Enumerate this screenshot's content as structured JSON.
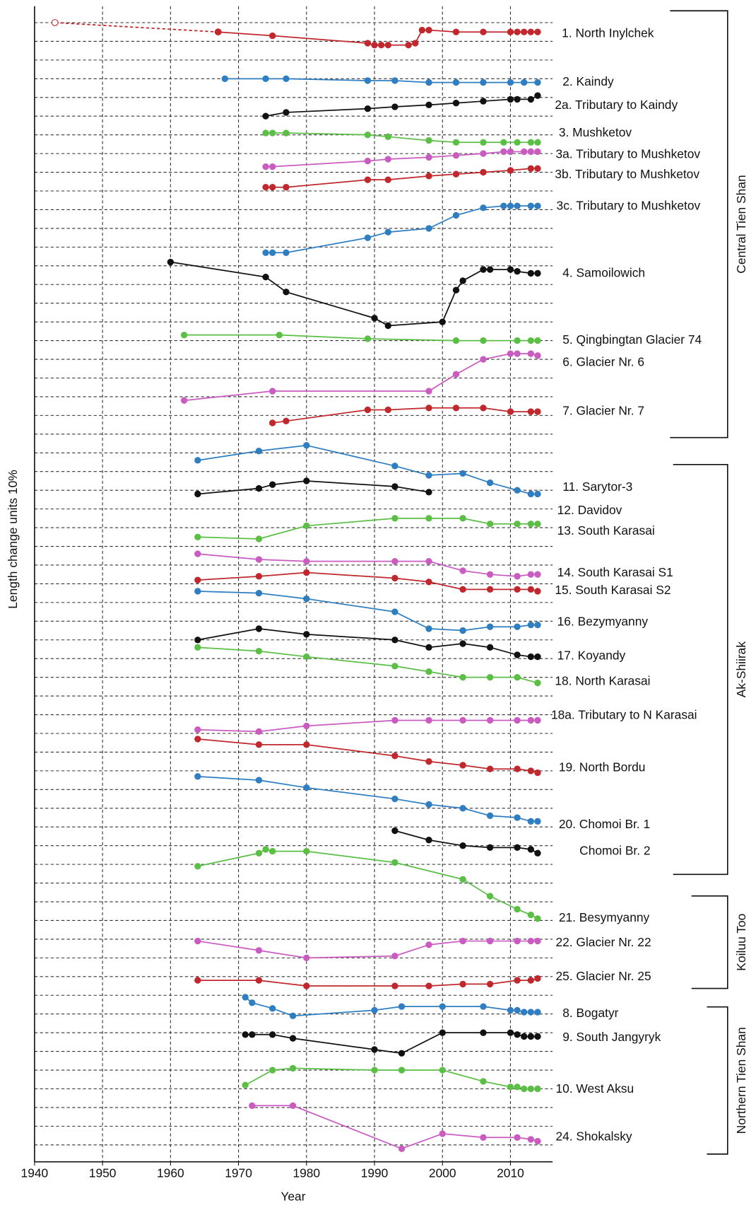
{
  "chart_data": {
    "type": "line",
    "x_label": "Year",
    "y_label": "Length change units 10%",
    "xlim": [
      1940,
      2016.2
    ],
    "xticks": [
      1940,
      1950,
      1960,
      1970,
      1980,
      1990,
      2000,
      2010
    ],
    "ylim": [
      0,
      61.78
    ],
    "ygrid": [
      0.9,
      1.9,
      2.9,
      3.9,
      4.9,
      5.9,
      6.9,
      7.9,
      8.9,
      9.9,
      10.9,
      11.9,
      12.9,
      13.9,
      14.9,
      15.9,
      16.9,
      17.9,
      18.9,
      19.9,
      20.9,
      21.9,
      22.9,
      23.9,
      24.9,
      25.9,
      26.9,
      27.9,
      28.9,
      29.9,
      30.9,
      31.9,
      32.9,
      33.9,
      34.9,
      35.9,
      36.9,
      37.9,
      38.9,
      39.9,
      40.9,
      41.9,
      42.9,
      43.9,
      44.9,
      45.9,
      46.9,
      47.9,
      48.9,
      49.9,
      50.9,
      51.9,
      52.9,
      53.9,
      54.9,
      55.9,
      56.9,
      57.9,
      58.9,
      59.9,
      60.9
    ],
    "grid": true,
    "groups": [
      "Central Tien Shan",
      "Ak-Shiirak",
      "Koiluu Too",
      "Northern Tien Shan"
    ],
    "unlinked_labels": [
      "12. Davidov"
    ],
    "series": [
      {
        "color": "#c0282d",
        "style": "dashed",
        "x": [
          1943,
          1967
        ],
        "values": [
          60.9,
          60.4
        ]
      },
      {
        "name": "1. North Inylchek",
        "color": "#c0282d",
        "x": [
          1967,
          1975,
          1989,
          1990,
          1991,
          1992,
          1995,
          1996,
          1997,
          1998,
          2002,
          2006,
          2010,
          2011,
          2012,
          2013,
          2014
        ],
        "values": [
          60.4,
          60.2,
          59.8,
          59.7,
          59.7,
          59.7,
          59.7,
          59.8,
          60.5,
          60.5,
          60.4,
          60.4,
          60.4,
          60.4,
          60.4,
          60.4,
          60.4
        ]
      },
      {
        "name": "2. Kaindy",
        "color": "#2e7ec1",
        "x": [
          1968,
          1974,
          1977,
          1989,
          1993,
          1998,
          2002,
          2006,
          2010,
          2012,
          2014
        ],
        "values": [
          57.9,
          57.9,
          57.9,
          57.8,
          57.8,
          57.7,
          57.7,
          57.7,
          57.7,
          57.7,
          57.7
        ]
      },
      {
        "name": "2a. Tributary to Kaindy",
        "color": "#111111",
        "x": [
          1974,
          1977,
          1989,
          1993,
          1998,
          2002,
          2006,
          2010,
          2011,
          2013,
          2014
        ],
        "values": [
          55.9,
          56.1,
          56.3,
          56.4,
          56.5,
          56.6,
          56.7,
          56.8,
          56.8,
          56.8,
          57.0
        ]
      },
      {
        "name": "3. Mushketov",
        "color": "#5bbf46",
        "x": [
          1974,
          1975,
          1977,
          1989,
          1992,
          1998,
          2002,
          2006,
          2009,
          2011,
          2013,
          2014
        ],
        "values": [
          55.0,
          55.0,
          55.0,
          54.9,
          54.8,
          54.6,
          54.5,
          54.5,
          54.5,
          54.5,
          54.5,
          54.5
        ]
      },
      {
        "name": "3a. Tributary to Mushketov",
        "color": "#c95bc1",
        "x": [
          1974,
          1975,
          1989,
          1992,
          1998,
          2002,
          2006,
          2009,
          2010,
          2012,
          2013,
          2014
        ],
        "values": [
          53.2,
          53.2,
          53.5,
          53.6,
          53.7,
          53.8,
          53.9,
          54.0,
          54.0,
          54.0,
          54.0,
          54.0
        ]
      },
      {
        "name": "3b. Tributary to Mushketov",
        "color": "#c0282d",
        "x": [
          1974,
          1975,
          1977,
          1989,
          1992,
          1998,
          2002,
          2006,
          2010,
          2013,
          2014
        ],
        "values": [
          52.1,
          52.1,
          52.1,
          52.5,
          52.5,
          52.7,
          52.8,
          52.9,
          53.0,
          53.1,
          53.1
        ]
      },
      {
        "name": "3c. Tributary to Mushketov",
        "color": "#2e7ec1",
        "x": [
          1974,
          1975,
          1977,
          1989,
          1992,
          1998,
          2002,
          2006,
          2009,
          2010,
          2011,
          2013,
          2014
        ],
        "values": [
          48.6,
          48.6,
          48.6,
          49.4,
          49.7,
          49.9,
          50.6,
          51.0,
          51.1,
          51.1,
          51.1,
          51.1,
          51.1
        ]
      },
      {
        "name": "4. Samoilowich",
        "color": "#111111",
        "x": [
          1960,
          1974,
          1977,
          1990,
          1992,
          2000,
          2002,
          2003,
          2006,
          2007,
          2010,
          2011,
          2013,
          2014
        ],
        "values": [
          48.1,
          47.3,
          46.5,
          45.1,
          44.7,
          44.9,
          46.6,
          47.1,
          47.7,
          47.7,
          47.7,
          47.6,
          47.5,
          47.5
        ]
      },
      {
        "name": "5. Qingbingtan Glacier 74",
        "color": "#5bbf46",
        "x": [
          1962,
          1976,
          1989,
          2002,
          2006,
          2011,
          2013,
          2014
        ],
        "values": [
          44.2,
          44.2,
          44.0,
          43.9,
          43.9,
          43.9,
          43.9,
          43.9
        ]
      },
      {
        "name": "6. Glacier Nr. 6",
        "color": "#c95bc1",
        "x": [
          1962,
          1975,
          1998,
          2002,
          2006,
          2010,
          2011,
          2013,
          2014
        ],
        "values": [
          40.7,
          41.2,
          41.2,
          42.1,
          42.9,
          43.2,
          43.2,
          43.2,
          43.1
        ]
      },
      {
        "name": "7. Glacier Nr. 7",
        "color": "#c0282d",
        "x": [
          1975,
          1977,
          1989,
          1992,
          1998,
          2002,
          2006,
          2010,
          2013,
          2014
        ],
        "values": [
          39.5,
          39.6,
          40.2,
          40.2,
          40.3,
          40.3,
          40.3,
          40.1,
          40.1,
          40.1
        ]
      },
      {
        "color": "#2e7ec1",
        "x": [
          1964,
          1973,
          1980,
          1993,
          1998,
          2003,
          2007,
          2011,
          2013,
          2014
        ],
        "values": [
          37.5,
          38.0,
          38.3,
          37.2,
          36.7,
          36.8,
          36.3,
          35.9,
          35.7,
          35.7
        ]
      },
      {
        "name": "11. Sarytor-3",
        "color": "#111111",
        "x": [
          1964,
          1973,
          1975,
          1980,
          1993,
          1998
        ],
        "values": [
          35.7,
          36.0,
          36.2,
          36.4,
          36.1,
          35.8
        ]
      },
      {
        "name": "13. South Karasai",
        "color": "#5bbf46",
        "x": [
          1964,
          1973,
          1980,
          1993,
          1998,
          2003,
          2007,
          2011,
          2013,
          2014
        ],
        "values": [
          33.4,
          33.3,
          34.0,
          34.4,
          34.4,
          34.4,
          34.1,
          34.1,
          34.1,
          34.1
        ]
      },
      {
        "name": "14. South Karasai S1",
        "color": "#c95bc1",
        "x": [
          1964,
          1973,
          1980,
          1993,
          1998,
          2003,
          2007,
          2011,
          2013,
          2014
        ],
        "values": [
          32.5,
          32.2,
          32.1,
          32.1,
          32.1,
          31.6,
          31.4,
          31.3,
          31.4,
          31.4
        ]
      },
      {
        "name": "15. South Karasai S2",
        "color": "#c0282d",
        "x": [
          1964,
          1973,
          1980,
          1993,
          1998,
          2003,
          2007,
          2011,
          2013,
          2014
        ],
        "values": [
          31.1,
          31.3,
          31.5,
          31.2,
          31.0,
          30.6,
          30.6,
          30.6,
          30.6,
          30.5
        ]
      },
      {
        "name": "16. Bezymyanny",
        "color": "#2e7ec1",
        "x": [
          1964,
          1973,
          1980,
          1993,
          1998,
          2003,
          2007,
          2011,
          2013,
          2014
        ],
        "values": [
          30.5,
          30.4,
          30.1,
          29.4,
          28.5,
          28.4,
          28.6,
          28.6,
          28.7,
          28.7
        ]
      },
      {
        "name": "17. Koyandy",
        "color": "#111111",
        "x": [
          1964,
          1973,
          1980,
          1993,
          1998,
          2003,
          2007,
          2011,
          2013,
          2014
        ],
        "values": [
          27.9,
          28.5,
          28.2,
          27.9,
          27.5,
          27.7,
          27.5,
          27.1,
          27.0,
          27.0
        ]
      },
      {
        "name": "18. North Karasai",
        "color": "#5bbf46",
        "x": [
          1964,
          1973,
          1980,
          1993,
          1998,
          2003,
          2007,
          2011,
          2014
        ],
        "values": [
          27.5,
          27.3,
          27.0,
          26.5,
          26.2,
          25.9,
          25.9,
          25.9,
          25.6
        ]
      },
      {
        "name": "18a. Tributary to N Karasai",
        "color": "#c95bc1",
        "x": [
          1964,
          1973,
          1980,
          1993,
          1998,
          2003,
          2007,
          2011,
          2013,
          2014
        ],
        "values": [
          23.1,
          23.0,
          23.3,
          23.6,
          23.6,
          23.6,
          23.6,
          23.6,
          23.6,
          23.6
        ]
      },
      {
        "name": "19. North Bordu",
        "color": "#c0282d",
        "x": [
          1964,
          1973,
          1980,
          1993,
          1998,
          2003,
          2007,
          2011,
          2013,
          2014
        ],
        "values": [
          22.6,
          22.3,
          22.3,
          21.7,
          21.4,
          21.2,
          21.0,
          21.0,
          20.9,
          20.8
        ]
      },
      {
        "name": "20. Chomoi Br. 1",
        "color": "#2e7ec1",
        "x": [
          1964,
          1973,
          1980,
          1993,
          1998,
          2003,
          2007,
          2011,
          2013,
          2014
        ],
        "values": [
          20.6,
          20.4,
          20.0,
          19.4,
          19.1,
          18.9,
          18.5,
          18.4,
          18.2,
          18.2
        ]
      },
      {
        "name": "Chomoi Br. 2",
        "color": "#111111",
        "x": [
          1993,
          1998,
          2003,
          2007,
          2011,
          2013,
          2014
        ],
        "values": [
          17.7,
          17.2,
          16.9,
          16.8,
          16.8,
          16.7,
          16.5
        ]
      },
      {
        "name": "21. Besymyanny",
        "color": "#5bbf46",
        "x": [
          1964,
          1973,
          1974,
          1975,
          1980,
          1993,
          2003,
          2007,
          2011,
          2013,
          2014
        ],
        "values": [
          15.8,
          16.5,
          16.7,
          16.6,
          16.6,
          16.0,
          15.1,
          14.2,
          13.5,
          13.2,
          13.0
        ]
      },
      {
        "name": "22. Glacier Nr. 22",
        "color": "#c95bc1",
        "x": [
          1964,
          1973,
          1980,
          1993,
          1998,
          2003,
          2007,
          2011,
          2013,
          2014
        ],
        "values": [
          11.8,
          11.3,
          10.9,
          11.0,
          11.6,
          11.8,
          11.8,
          11.8,
          11.8,
          11.8
        ]
      },
      {
        "name": "25. Glacier Nr. 25",
        "color": "#c0282d",
        "x": [
          1964,
          1973,
          1980,
          1993,
          1998,
          2003,
          2007,
          2011,
          2013,
          2014
        ],
        "values": [
          9.7,
          9.7,
          9.4,
          9.4,
          9.4,
          9.5,
          9.5,
          9.7,
          9.7,
          9.8
        ]
      },
      {
        "name": "8. Bogatyr",
        "color": "#2e7ec1",
        "x": [
          1971,
          1972,
          1975,
          1978,
          1990,
          1994,
          2000,
          2006,
          2010,
          2011,
          2012,
          2013,
          2014
        ],
        "values": [
          8.8,
          8.5,
          8.2,
          7.8,
          8.1,
          8.3,
          8.3,
          8.3,
          8.1,
          8.1,
          8.0,
          8.0,
          8.0
        ]
      },
      {
        "name": "9. South Jangyryk",
        "color": "#111111",
        "x": [
          1971,
          1972,
          1975,
          1978,
          1990,
          1994,
          2000,
          2006,
          2010,
          2011,
          2012,
          2013,
          2014
        ],
        "values": [
          6.8,
          6.8,
          6.8,
          6.6,
          6.0,
          5.8,
          6.9,
          6.9,
          6.9,
          6.8,
          6.7,
          6.7,
          6.7
        ]
      },
      {
        "name": "10. West Aksu",
        "color": "#5bbf46",
        "x": [
          1971,
          1975,
          1978,
          1990,
          1994,
          2000,
          2006,
          2010,
          2011,
          2012,
          2013,
          2014
        ],
        "values": [
          4.1,
          4.9,
          5.0,
          4.9,
          4.9,
          4.9,
          4.3,
          4.0,
          4.0,
          3.9,
          3.9,
          3.9
        ]
      },
      {
        "name": "24. Shokalsky",
        "color": "#c95bc1",
        "x": [
          1972,
          1978,
          1994,
          2000,
          2006,
          2011,
          2013,
          2014
        ],
        "values": [
          3.0,
          3.0,
          0.7,
          1.5,
          1.3,
          1.3,
          1.2,
          1.1
        ]
      }
    ]
  }
}
